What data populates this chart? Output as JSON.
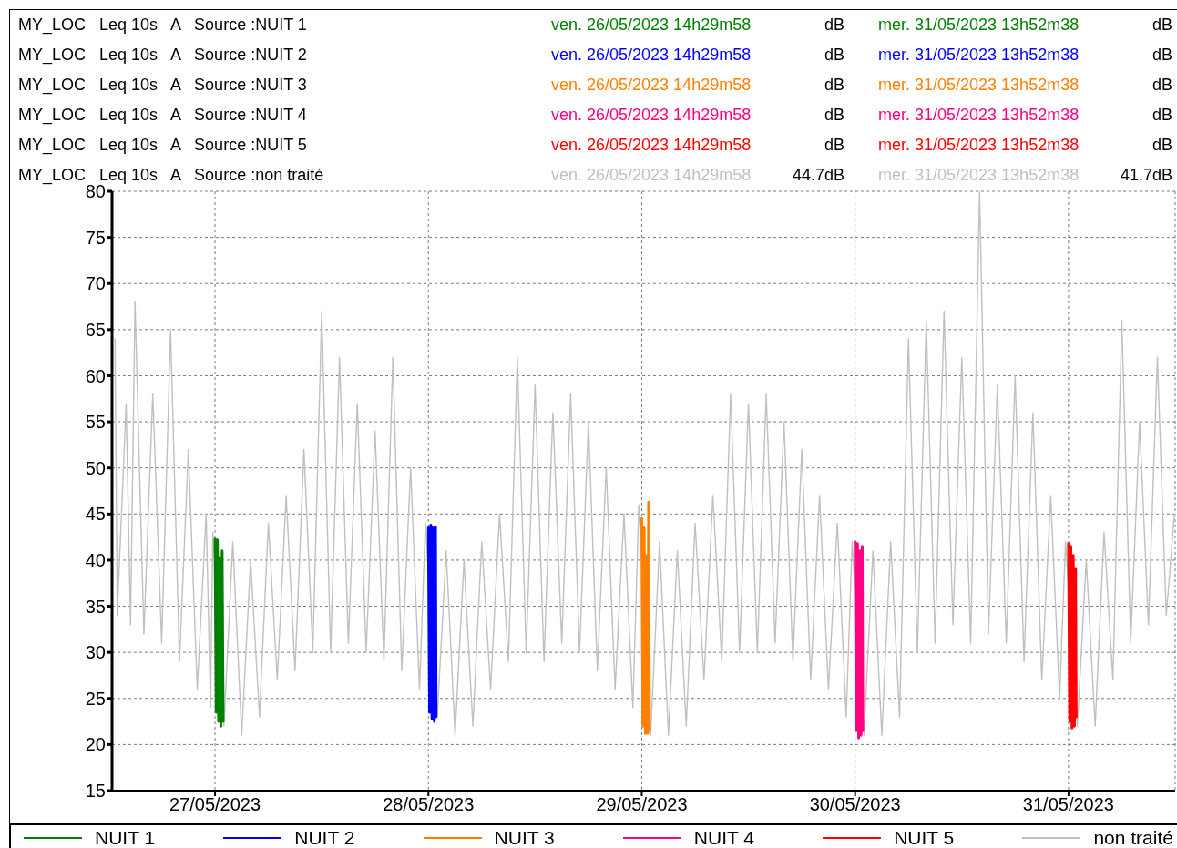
{
  "chart_data": {
    "type": "line",
    "annotations": [
      "MY_LOC   Leq 10s   A   Source :NUIT 1",
      "ven. 26/05/2023 14h29m58",
      "dB",
      "mer. 31/05/2023 13h52m38",
      "dB",
      "MY_LOC   Leq 10s   A   Source :NUIT 2",
      "ven. 26/05/2023 14h29m58",
      "dB",
      "mer. 31/05/2023 13h52m38",
      "dB",
      "MY_LOC   Leq 10s   A   Source :NUIT 3",
      "ven. 26/05/2023 14h29m58",
      "dB",
      "mer. 31/05/2023 13h52m38",
      "dB",
      "MY_LOC   Leq 10s   A   Source :NUIT 4",
      "ven. 26/05/2023 14h29m58",
      "dB",
      "mer. 31/05/2023 13h52m38",
      "dB",
      "MY_LOC   Leq 10s   A   Source :NUIT 5",
      "ven. 26/05/2023 14h29m58",
      "dB",
      "mer. 31/05/2023 13h52m38",
      "dB",
      "MY_LOC   Leq 10s   A   Source :non traité",
      "ven. 26/05/2023 14h29m58",
      "44.7dB",
      "mer. 31/05/2023 13h52m38",
      "41.7dB"
    ],
    "xlim": [
      "2023-05-26T12:25",
      "2023-05-31T12:00"
    ],
    "xticks": [
      {
        "value": "2023-05-27",
        "label": "27/05/2023"
      },
      {
        "value": "2023-05-28",
        "label": "28/05/2023"
      },
      {
        "value": "2023-05-29",
        "label": "29/05/2023"
      },
      {
        "value": "2023-05-30",
        "label": "30/05/2023"
      },
      {
        "value": "2023-05-31",
        "label": "31/05/2023"
      }
    ],
    "ylim": [
      15,
      80
    ],
    "yticks": [
      15,
      20,
      25,
      30,
      35,
      40,
      45,
      50,
      55,
      60,
      65,
      70,
      75,
      80
    ],
    "grid": true,
    "legend": "bottom",
    "line_style": "solid",
    "series": [
      {
        "name": "NUIT 1",
        "color": "#008000",
        "x": [
          "2023-05-27T00:00",
          "2023-05-27T00:08",
          "2023-05-27T00:16",
          "2023-05-27T00:24",
          "2023-05-27T00:32",
          "2023-05-27T00:40",
          "2023-05-27T00:48",
          "2023-05-27T00:55"
        ],
        "values": [
          42.3,
          23.5,
          42.2,
          22.5,
          40.3,
          22,
          41,
          22.5
        ]
      },
      {
        "name": "NUIT 2",
        "color": "#0000ff",
        "x": [
          "2023-05-28T00:00",
          "2023-05-28T00:08",
          "2023-05-28T00:16",
          "2023-05-28T00:24",
          "2023-05-28T00:32",
          "2023-05-28T00:40",
          "2023-05-28T00:48",
          "2023-05-28T00:52"
        ],
        "values": [
          43.5,
          23.5,
          43.8,
          22.8,
          43.5,
          22.5,
          43.6,
          23
        ]
      },
      {
        "name": "NUIT 3",
        "color": "#ff8000",
        "x": [
          "2023-05-29T00:00",
          "2023-05-29T00:08",
          "2023-05-29T00:16",
          "2023-05-29T00:24",
          "2023-05-29T00:32",
          "2023-05-29T00:40",
          "2023-05-29T00:46",
          "2023-05-29T00:52"
        ],
        "values": [
          44.5,
          22,
          43.5,
          21.2,
          40.5,
          21.2,
          46.3,
          21.5
        ]
      },
      {
        "name": "NUIT 4",
        "color": "#ff0080",
        "x": [
          "2023-05-30T00:00",
          "2023-05-30T00:08",
          "2023-05-30T00:16",
          "2023-05-30T00:24",
          "2023-05-30T00:32",
          "2023-05-30T00:40",
          "2023-05-30T00:48",
          "2023-05-30T00:52"
        ],
        "values": [
          42,
          21.5,
          41.8,
          20.7,
          41,
          21,
          41.5,
          21.5
        ]
      },
      {
        "name": "NUIT 5",
        "color": "#ff0000",
        "x": [
          "2023-05-31T00:00",
          "2023-05-31T00:08",
          "2023-05-31T00:16",
          "2023-05-31T00:24",
          "2023-05-31T00:32",
          "2023-05-31T00:40",
          "2023-05-31T00:48",
          "2023-05-31T00:52"
        ],
        "values": [
          41.8,
          22.5,
          41.5,
          21.8,
          40.5,
          22,
          39,
          23
        ]
      },
      {
        "name": "non traité",
        "color": "#c0c0c0",
        "x": [
          "2023-05-26T12:45",
          "2023-05-26T13:00",
          "2023-05-26T14:00",
          "2023-05-26T14:30",
          "2023-05-26T15:00",
          "2023-05-26T16:00",
          "2023-05-26T17:00",
          "2023-05-26T18:00",
          "2023-05-26T19:00",
          "2023-05-26T20:00",
          "2023-05-26T21:00",
          "2023-05-26T22:00",
          "2023-05-26T23:00",
          "2023-05-26T23:30",
          "2023-05-26T23:45",
          "2023-05-27T01:00",
          "2023-05-27T02:00",
          "2023-05-27T03:00",
          "2023-05-27T04:00",
          "2023-05-27T05:00",
          "2023-05-27T06:00",
          "2023-05-27T07:00",
          "2023-05-27T08:00",
          "2023-05-27T09:00",
          "2023-05-27T10:00",
          "2023-05-27T11:00",
          "2023-05-27T12:00",
          "2023-05-27T13:00",
          "2023-05-27T14:00",
          "2023-05-27T15:00",
          "2023-05-27T16:00",
          "2023-05-27T17:00",
          "2023-05-27T18:00",
          "2023-05-27T19:00",
          "2023-05-27T20:00",
          "2023-05-27T21:00",
          "2023-05-27T22:00",
          "2023-05-27T23:00",
          "2023-05-27T23:40",
          "2023-05-28T01:00",
          "2023-05-28T02:00",
          "2023-05-28T03:00",
          "2023-05-28T04:00",
          "2023-05-28T05:00",
          "2023-05-28T06:00",
          "2023-05-28T07:00",
          "2023-05-28T08:00",
          "2023-05-28T09:00",
          "2023-05-28T10:00",
          "2023-05-28T11:00",
          "2023-05-28T12:00",
          "2023-05-28T13:00",
          "2023-05-28T14:00",
          "2023-05-28T15:00",
          "2023-05-28T16:00",
          "2023-05-28T17:00",
          "2023-05-28T18:00",
          "2023-05-28T19:00",
          "2023-05-28T20:00",
          "2023-05-28T21:00",
          "2023-05-28T22:00",
          "2023-05-28T23:00",
          "2023-05-28T23:40",
          "2023-05-29T01:00",
          "2023-05-29T02:00",
          "2023-05-29T03:00",
          "2023-05-29T04:00",
          "2023-05-29T05:00",
          "2023-05-29T06:00",
          "2023-05-29T07:00",
          "2023-05-29T08:00",
          "2023-05-29T09:00",
          "2023-05-29T10:00",
          "2023-05-29T11:00",
          "2023-05-29T12:00",
          "2023-05-29T13:00",
          "2023-05-29T14:00",
          "2023-05-29T15:00",
          "2023-05-29T16:00",
          "2023-05-29T17:00",
          "2023-05-29T18:00",
          "2023-05-29T19:00",
          "2023-05-29T20:00",
          "2023-05-29T21:00",
          "2023-05-29T22:00",
          "2023-05-29T23:00",
          "2023-05-29T23:40",
          "2023-05-30T01:00",
          "2023-05-30T02:00",
          "2023-05-30T03:00",
          "2023-05-30T04:00",
          "2023-05-30T05:00",
          "2023-05-30T06:00",
          "2023-05-30T07:00",
          "2023-05-30T08:00",
          "2023-05-30T09:00",
          "2023-05-30T10:00",
          "2023-05-30T11:00",
          "2023-05-30T12:00",
          "2023-05-30T13:00",
          "2023-05-30T14:00",
          "2023-05-30T15:00",
          "2023-05-30T16:00",
          "2023-05-30T17:00",
          "2023-05-30T18:00",
          "2023-05-30T19:00",
          "2023-05-30T20:00",
          "2023-05-30T21:00",
          "2023-05-30T22:00",
          "2023-05-30T23:00",
          "2023-05-30T23:40",
          "2023-05-31T01:00",
          "2023-05-31T02:00",
          "2023-05-31T03:00",
          "2023-05-31T04:00",
          "2023-05-31T05:00",
          "2023-05-31T06:00",
          "2023-05-31T07:00",
          "2023-05-31T08:00",
          "2023-05-31T09:00",
          "2023-05-31T10:00",
          "2023-05-31T11:00",
          "2023-05-31T11:55"
        ],
        "values": [
          64,
          34,
          57,
          33,
          68,
          32,
          58,
          31,
          65,
          29,
          52,
          26,
          45,
          24,
          43,
          22,
          42,
          21,
          40,
          23,
          44,
          27,
          47,
          28,
          52,
          30,
          67,
          30,
          62,
          31,
          57,
          30,
          54,
          29,
          62,
          28,
          50,
          26,
          44,
          23,
          41,
          21,
          40,
          22,
          42,
          26,
          45,
          29,
          62,
          30,
          59,
          29,
          56,
          31,
          58,
          30,
          55,
          28,
          50,
          26,
          45,
          24,
          46,
          21,
          42,
          21,
          41,
          22,
          44,
          27,
          47,
          29,
          58,
          30,
          57,
          30,
          58,
          31,
          55,
          29,
          52,
          27,
          47,
          26,
          44,
          23,
          42,
          21,
          41,
          21,
          42,
          23,
          64,
          30,
          66,
          31,
          67,
          33,
          62,
          31,
          80,
          32,
          59,
          31,
          60,
          29,
          56,
          27,
          47,
          25,
          42,
          22,
          40,
          22,
          43,
          27,
          66,
          31,
          55,
          33,
          62,
          34,
          45
        ]
      }
    ]
  }
}
